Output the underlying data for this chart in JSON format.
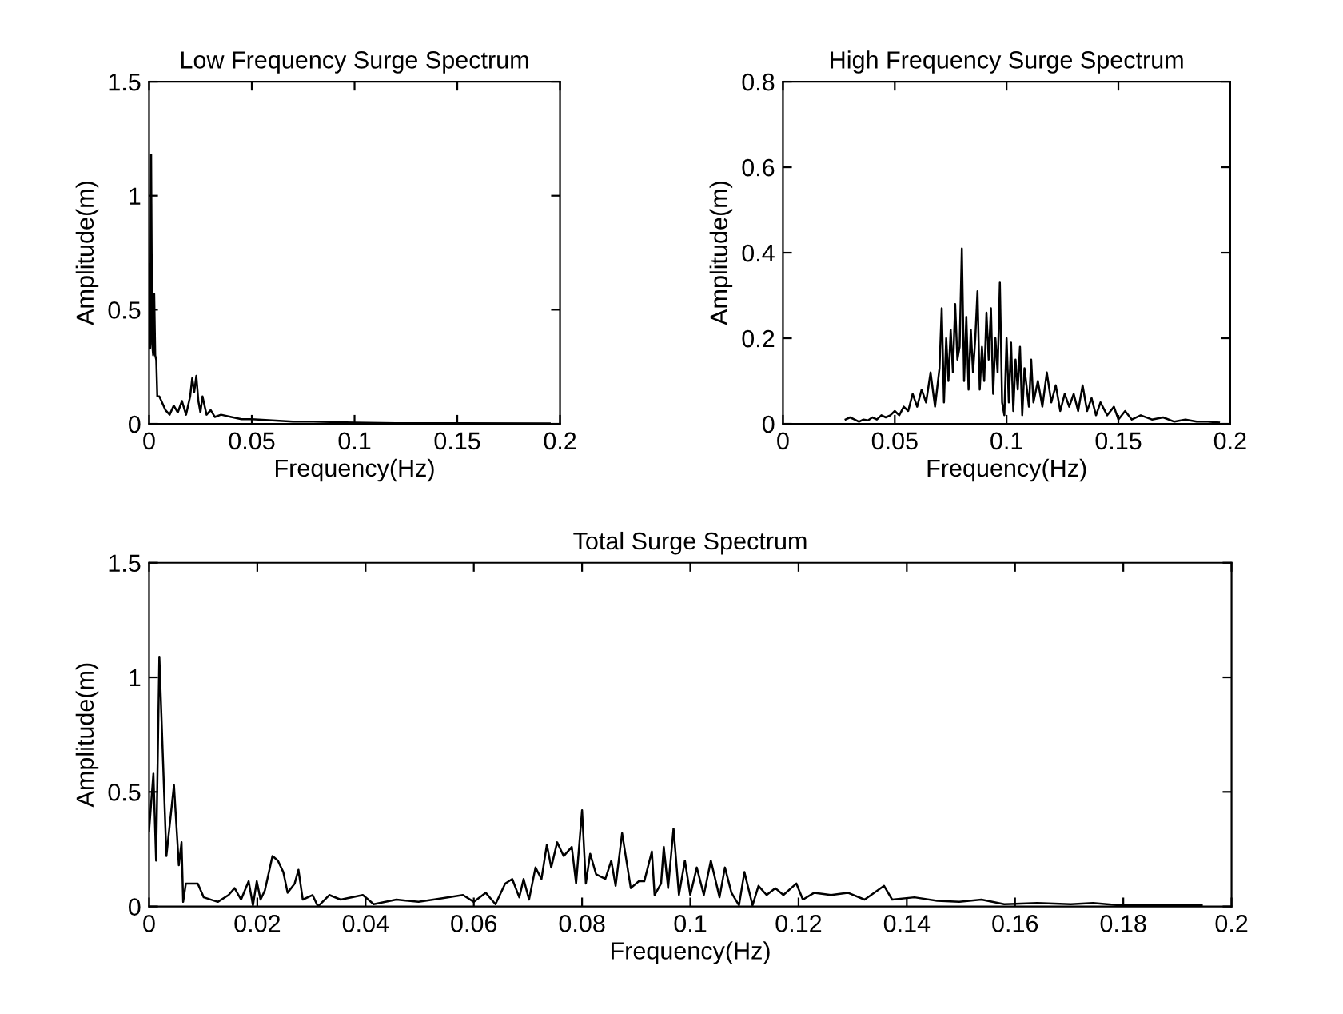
{
  "chart_data": [
    {
      "type": "line",
      "title": "Low Frequency Surge Spectrum",
      "xlabel": "Frequency(Hz)",
      "ylabel": "Amplitude(m)",
      "xlim": [
        0,
        0.2
      ],
      "ylim": [
        0,
        1.5
      ],
      "xticks": [
        0,
        0.05,
        0.1,
        0.15,
        0.2
      ],
      "yticks": [
        0,
        0.5,
        1,
        1.5
      ],
      "series": [
        {
          "color": "#000000",
          "x": [
            0,
            0.0005,
            0.001,
            0.0015,
            0.002,
            0.0025,
            0.003,
            0.0035,
            0.004,
            0.005,
            0.006,
            0.008,
            0.01,
            0.012,
            0.014,
            0.016,
            0.018,
            0.02,
            0.021,
            0.022,
            0.023,
            0.024,
            0.025,
            0.026,
            0.028,
            0.03,
            0.032,
            0.035,
            0.04,
            0.045,
            0.05,
            0.06,
            0.07,
            0.08,
            0.1,
            0.12,
            0.15,
            0.195
          ],
          "values": [
            0.7,
            0.33,
            1.18,
            0.35,
            0.3,
            0.57,
            0.3,
            0.28,
            0.12,
            0.12,
            0.1,
            0.06,
            0.04,
            0.08,
            0.05,
            0.1,
            0.04,
            0.12,
            0.2,
            0.14,
            0.21,
            0.1,
            0.05,
            0.12,
            0.04,
            0.06,
            0.03,
            0.04,
            0.03,
            0.02,
            0.02,
            0.015,
            0.01,
            0.01,
            0.005,
            0.003,
            0.003,
            0.002
          ]
        }
      ]
    },
    {
      "type": "line",
      "title": "High Frequency Surge Spectrum",
      "xlabel": "Frequency(Hz)",
      "ylabel": "Amplitude(m)",
      "xlim": [
        0,
        0.2
      ],
      "ylim": [
        0,
        0.8
      ],
      "xticks": [
        0,
        0.05,
        0.1,
        0.15,
        0.2
      ],
      "yticks": [
        0,
        0.2,
        0.4,
        0.6,
        0.8
      ],
      "series": [
        {
          "color": "#000000",
          "x": [
            0.028,
            0.03,
            0.032,
            0.034,
            0.036,
            0.038,
            0.04,
            0.042,
            0.044,
            0.046,
            0.048,
            0.05,
            0.052,
            0.054,
            0.056,
            0.058,
            0.06,
            0.062,
            0.064,
            0.066,
            0.068,
            0.07,
            0.071,
            0.072,
            0.073,
            0.074,
            0.075,
            0.076,
            0.077,
            0.078,
            0.079,
            0.08,
            0.081,
            0.082,
            0.083,
            0.084,
            0.085,
            0.086,
            0.087,
            0.088,
            0.089,
            0.09,
            0.091,
            0.092,
            0.093,
            0.094,
            0.095,
            0.096,
            0.097,
            0.098,
            0.099,
            0.1,
            0.101,
            0.102,
            0.103,
            0.104,
            0.105,
            0.106,
            0.107,
            0.108,
            0.11,
            0.111,
            0.112,
            0.114,
            0.116,
            0.118,
            0.12,
            0.122,
            0.124,
            0.126,
            0.128,
            0.13,
            0.132,
            0.134,
            0.136,
            0.138,
            0.14,
            0.142,
            0.145,
            0.148,
            0.15,
            0.153,
            0.156,
            0.16,
            0.165,
            0.17,
            0.175,
            0.18,
            0.185,
            0.19,
            0.195
          ],
          "values": [
            0.01,
            0.015,
            0.01,
            0.005,
            0.01,
            0.008,
            0.015,
            0.01,
            0.02,
            0.015,
            0.02,
            0.03,
            0.02,
            0.04,
            0.03,
            0.07,
            0.04,
            0.08,
            0.05,
            0.12,
            0.04,
            0.13,
            0.27,
            0.05,
            0.2,
            0.1,
            0.22,
            0.12,
            0.28,
            0.15,
            0.18,
            0.41,
            0.1,
            0.25,
            0.08,
            0.22,
            0.12,
            0.2,
            0.31,
            0.08,
            0.18,
            0.1,
            0.26,
            0.15,
            0.27,
            0.07,
            0.2,
            0.12,
            0.33,
            0.05,
            0.02,
            0.2,
            0.05,
            0.19,
            0.03,
            0.15,
            0.08,
            0.18,
            0.02,
            0.13,
            0.04,
            0.15,
            0.05,
            0.1,
            0.04,
            0.12,
            0.05,
            0.09,
            0.03,
            0.07,
            0.04,
            0.07,
            0.03,
            0.09,
            0.03,
            0.06,
            0.02,
            0.05,
            0.02,
            0.04,
            0.01,
            0.03,
            0.01,
            0.02,
            0.01,
            0.015,
            0.005,
            0.01,
            0.005,
            0.005,
            0.003
          ]
        }
      ]
    },
    {
      "type": "line",
      "title": "Total Surge Spectrum",
      "xlabel": "Frequency(Hz)",
      "ylabel": "Amplitude(m)",
      "xlim": [
        0,
        0.2
      ],
      "ylim": [
        0,
        1.5
      ],
      "xticks": [
        0,
        0.02,
        0.04,
        0.06,
        0.08,
        0.1,
        0.12,
        0.14,
        0.16,
        0.18,
        0.2
      ],
      "yticks": [
        0,
        0.5,
        1,
        1.5
      ],
      "series": [
        {
          "color": "#000000",
          "x": [
            0,
            0.0008,
            0.0013,
            0.0019,
            0.0032,
            0.0046,
            0.0055,
            0.006,
            0.0063,
            0.0068,
            0.009,
            0.0101,
            0.0127,
            0.0147,
            0.0158,
            0.017,
            0.0184,
            0.0192,
            0.0199,
            0.0206,
            0.0214,
            0.0228,
            0.0238,
            0.0248,
            0.0256,
            0.0269,
            0.0276,
            0.0284,
            0.0302,
            0.0312,
            0.0333,
            0.0354,
            0.0395,
            0.0415,
            0.0457,
            0.0498,
            0.054,
            0.058,
            0.06,
            0.0622,
            0.064,
            0.0658,
            0.0671,
            0.0684,
            0.0692,
            0.0702,
            0.0714,
            0.0725,
            0.0735,
            0.0743,
            0.0754,
            0.0766,
            0.0781,
            0.0789,
            0.08,
            0.0807,
            0.0815,
            0.0826,
            0.0843,
            0.0854,
            0.0862,
            0.0874,
            0.089,
            0.0905,
            0.0915,
            0.0929,
            0.0934,
            0.0946,
            0.0951,
            0.0959,
            0.0969,
            0.0979,
            0.099,
            0.1,
            0.1012,
            0.1025,
            0.1038,
            0.1054,
            0.1064,
            0.1076,
            0.109,
            0.11,
            0.1115,
            0.1126,
            0.1141,
            0.1157,
            0.1172,
            0.1196,
            0.1208,
            0.1229,
            0.126,
            0.1291,
            0.1322,
            0.1358,
            0.1373,
            0.1414,
            0.1456,
            0.1497,
            0.1538,
            0.158,
            0.1641,
            0.1703,
            0.1744,
            0.1796,
            0.1847,
            0.1945
          ],
          "values": [
            0.33,
            0.58,
            0.2,
            1.09,
            0.22,
            0.53,
            0.18,
            0.28,
            0.02,
            0.1,
            0.1,
            0.04,
            0.02,
            0.05,
            0.08,
            0.03,
            0.11,
            0.005,
            0.11,
            0.03,
            0.07,
            0.22,
            0.2,
            0.15,
            0.06,
            0.1,
            0.16,
            0.03,
            0.05,
            0,
            0.05,
            0.03,
            0.05,
            0.01,
            0.03,
            0.02,
            0.035,
            0.05,
            0.02,
            0.06,
            0.01,
            0.1,
            0.12,
            0.04,
            0.12,
            0.03,
            0.17,
            0.12,
            0.27,
            0.17,
            0.28,
            0.22,
            0.26,
            0.1,
            0.42,
            0.1,
            0.23,
            0.14,
            0.12,
            0.2,
            0.09,
            0.32,
            0.08,
            0.11,
            0.11,
            0.24,
            0.05,
            0.1,
            0.26,
            0.08,
            0.34,
            0.05,
            0.2,
            0.05,
            0.17,
            0.05,
            0.2,
            0.04,
            0.17,
            0.06,
            0.005,
            0.15,
            0.005,
            0.09,
            0.05,
            0.08,
            0.05,
            0.1,
            0.03,
            0.06,
            0.05,
            0.06,
            0.03,
            0.09,
            0.03,
            0.04,
            0.025,
            0.02,
            0.03,
            0.01,
            0.015,
            0.01,
            0.015,
            0.005,
            0.005,
            0.005
          ]
        }
      ]
    }
  ]
}
